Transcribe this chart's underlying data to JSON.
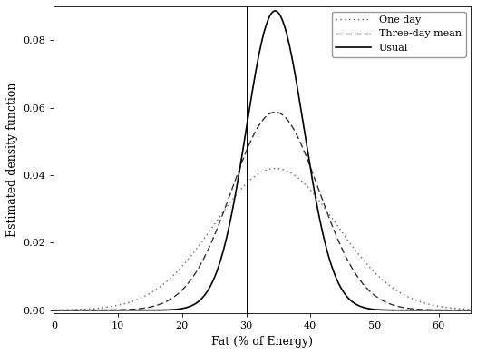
{
  "title": "",
  "xlabel": "Fat (% of Energy)",
  "ylabel": "Estimated density function",
  "xlim": [
    0,
    65
  ],
  "ylim": [
    -0.001,
    0.09
  ],
  "xticks": [
    0,
    10,
    20,
    30,
    40,
    50,
    60
  ],
  "yticks": [
    0.0,
    0.02,
    0.04,
    0.06,
    0.08
  ],
  "vline_x": 30,
  "curves": [
    {
      "label": "One day",
      "mean": 34.5,
      "std": 9.5,
      "skew": 0.3,
      "linestyle": "dotted",
      "color": "#666666",
      "linewidth": 1.0
    },
    {
      "label": "Three-day mean",
      "mean": 34.5,
      "std": 6.8,
      "skew": 0.25,
      "linestyle": "dashed",
      "color": "#333333",
      "linewidth": 1.0
    },
    {
      "label": "Usual",
      "mean": 34.5,
      "std": 4.5,
      "skew": 0.2,
      "linestyle": "solid",
      "color": "#000000",
      "linewidth": 1.2
    }
  ],
  "legend_loc": "upper right",
  "legend_fontsize": 8,
  "tick_fontsize": 8,
  "label_fontsize": 9,
  "background_color": "#ffffff",
  "figsize": [
    5.26,
    3.9
  ],
  "dpi": 100
}
